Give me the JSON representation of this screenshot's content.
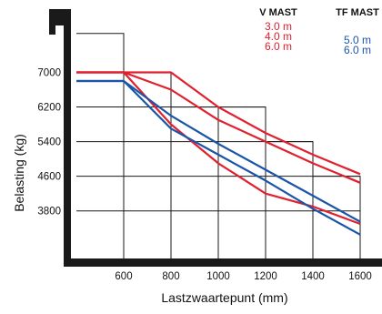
{
  "chart_data": {
    "type": "line",
    "title": "",
    "xlabel": "Lastzwaartepunt (mm)",
    "ylabel": "Belasting (kg)",
    "x_ticks": [
      "600",
      "800",
      "1000",
      "1200",
      "1400",
      "1600"
    ],
    "y_ticks": [
      "7000",
      "6200",
      "5400",
      "4600",
      "3800"
    ],
    "xlim": [
      400,
      1600
    ],
    "ylim": [
      2700,
      7200
    ],
    "legend": {
      "v_mast_label": "V MAST",
      "tf_mast_label": "TF MAST",
      "v_mast_values": [
        "3.0 m",
        "4.0 m",
        "6.0 m"
      ],
      "tf_mast_values": [
        "5.0 m",
        "6.0 m"
      ]
    },
    "colors": {
      "v_mast": "#e0202e",
      "tf_mast": "#1a55a8"
    },
    "series": [
      {
        "group": "V MAST",
        "x": [
          400,
          600,
          800,
          1000,
          1200,
          1400,
          1600
        ],
        "y": [
          7000,
          7000,
          7000,
          6200,
          5600,
          5100,
          4650
        ]
      },
      {
        "group": "V MAST",
        "x": [
          400,
          600,
          800,
          1000,
          1200,
          1400,
          1600
        ],
        "y": [
          7000,
          7000,
          6600,
          5900,
          5400,
          4900,
          4450
        ]
      },
      {
        "group": "V MAST",
        "x": [
          400,
          600,
          800,
          1000,
          1200,
          1400,
          1600
        ],
        "y": [
          7000,
          7000,
          5800,
          4900,
          4200,
          3900,
          3500
        ]
      },
      {
        "group": "TF MAST",
        "x": [
          400,
          600,
          800,
          1000,
          1200,
          1400,
          1600
        ],
        "y": [
          6800,
          6800,
          6000,
          5350,
          4750,
          4150,
          3550
        ]
      },
      {
        "group": "TF MAST",
        "x": [
          400,
          600,
          800,
          1000,
          1200,
          1400,
          1600
        ],
        "y": [
          6800,
          6800,
          5700,
          5100,
          4500,
          3850,
          3250
        ]
      }
    ]
  }
}
